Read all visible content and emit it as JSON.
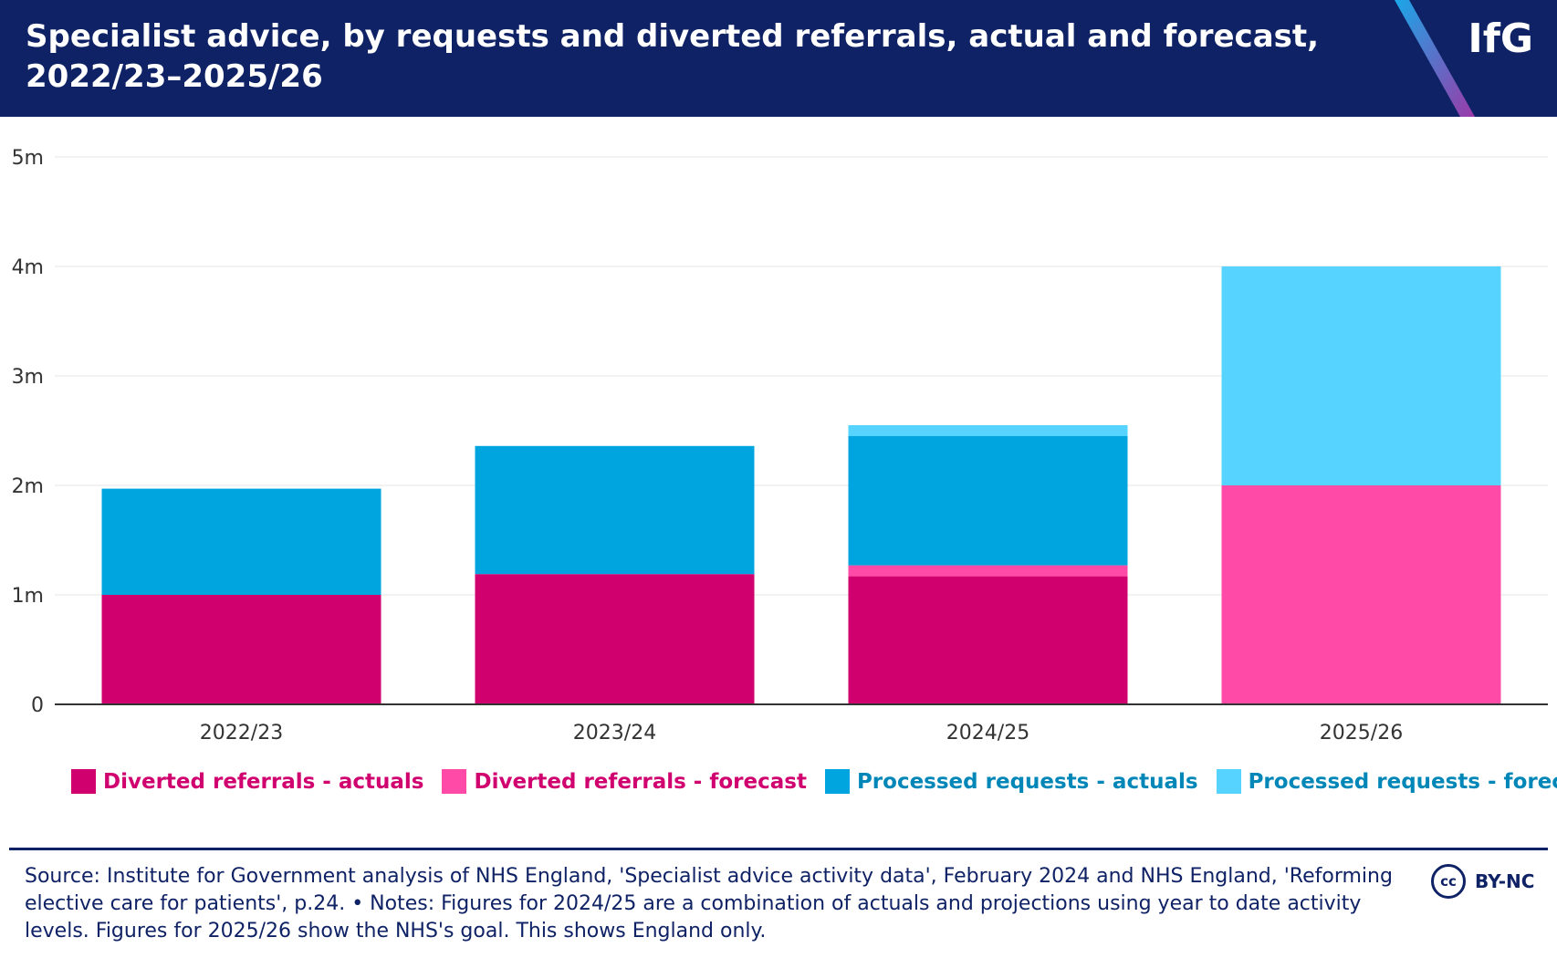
{
  "header": {
    "title": "Specialist advice, by requests and diverted referrals, actual and forecast, 2022/23–2025/26",
    "logo": "IfG"
  },
  "colors": {
    "header_bg": "#0f2265",
    "diverted_actual": "#d0006f",
    "diverted_forecast": "#ff4aa8",
    "processed_actual": "#00a5e0",
    "processed_forecast": "#56d4ff",
    "legend_text_diverted": "#d0006f",
    "legend_text_processed": "#0087b8"
  },
  "chart_data": {
    "type": "bar",
    "stacked": true,
    "title": "Specialist advice, by requests and diverted referrals, actual and forecast, 2022/23–2025/26",
    "xlabel": "",
    "ylabel": "",
    "ylim": [
      0,
      5000000
    ],
    "yticks": [
      {
        "value": 0,
        "label": "0"
      },
      {
        "value": 1000000,
        "label": "1m"
      },
      {
        "value": 2000000,
        "label": "2m"
      },
      {
        "value": 3000000,
        "label": "3m"
      },
      {
        "value": 4000000,
        "label": "4m"
      },
      {
        "value": 5000000,
        "label": "5m"
      }
    ],
    "grid": true,
    "legend_position": "bottom",
    "categories": [
      "2022/23",
      "2023/24",
      "2024/25",
      "2025/26"
    ],
    "series": [
      {
        "name": "Diverted referrals - actuals",
        "color": "#d0006f",
        "values": [
          1000000,
          1190000,
          1170000,
          0
        ]
      },
      {
        "name": "Diverted referrals - forecast",
        "color": "#ff4aa8",
        "values": [
          0,
          0,
          100000,
          2000000
        ]
      },
      {
        "name": "Processed requests - actuals",
        "color": "#00a5e0",
        "values": [
          970000,
          1170000,
          1180000,
          0
        ]
      },
      {
        "name": "Processed requests - forecast",
        "color": "#56d4ff",
        "values": [
          0,
          0,
          100000,
          2000000
        ]
      }
    ]
  },
  "legend": [
    {
      "label": "Diverted referrals - actuals",
      "color": "#d0006f",
      "text_color": "#d0006f"
    },
    {
      "label": "Diverted referrals - forecast",
      "color": "#ff4aa8",
      "text_color": "#d0006f"
    },
    {
      "label": "Processed requests - actuals",
      "color": "#00a5e0",
      "text_color": "#0087b8"
    },
    {
      "label": "Processed requests - forecast",
      "color": "#56d4ff",
      "text_color": "#0087b8"
    }
  ],
  "footer": {
    "source": "Source: Institute for Government analysis of NHS England, 'Specialist advice activity data', February 2024 and NHS England, 'Reforming elective care for patients', p.24. • Notes: Figures for 2024/25 are a combination of actuals and projections using year to date activity levels. Figures for 2025/26 show the NHS's goal. This shows England only.",
    "cc_badge": "cc",
    "license": "BY-NC"
  }
}
